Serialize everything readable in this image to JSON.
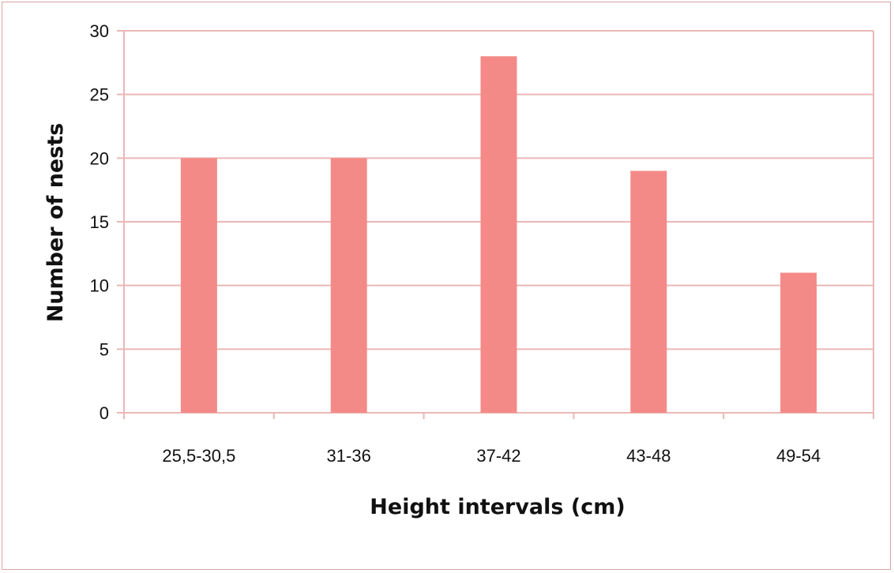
{
  "chart_data": {
    "type": "bar",
    "categories": [
      "25,5-30,5",
      "31-36",
      "37-42",
      "43-48",
      "49-54"
    ],
    "values": [
      20,
      20,
      28,
      19,
      11
    ],
    "title": "",
    "xlabel": "Height intervals (cm)",
    "ylabel": "Number of nests",
    "ylim": [
      0,
      30
    ],
    "yticks": [
      "0",
      "5",
      "10",
      "15",
      "20",
      "25",
      "30"
    ],
    "grid": true,
    "legend": "none",
    "colors": {
      "bar": "#f48a87",
      "grid": "#eab8b6",
      "frame": "#d9a6a6"
    }
  }
}
